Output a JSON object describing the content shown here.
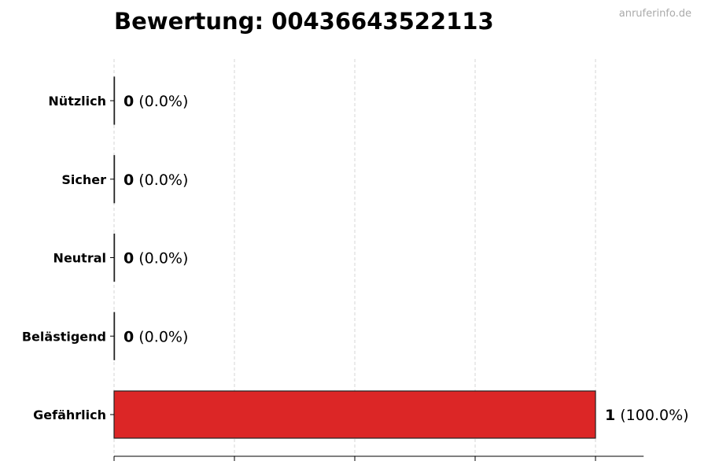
{
  "watermark": "anruferinfo.de",
  "chart_data": {
    "type": "bar",
    "orientation": "horizontal",
    "title": "Bewertung: 00436643522113",
    "categories": [
      "Nützlich",
      "Sicher",
      "Neutral",
      "Belästigend",
      "Gefährlich"
    ],
    "values": [
      0,
      0,
      0,
      0,
      1
    ],
    "value_labels": [
      "(0.0%)",
      "(0.0%)",
      "(0.0%)",
      "(0.0%)",
      "(100.0%)"
    ],
    "colors": [
      "#4caf50",
      "#2196f3",
      "#9e9e9e",
      "#ff9800",
      "#dc2626"
    ],
    "xlim": [
      0,
      1.1
    ],
    "xticks": [
      0,
      0.25,
      0.5,
      0.75,
      1.0
    ],
    "xtick_labels_shown": false,
    "grid": "x-dashed",
    "xlabel": "",
    "ylabel": ""
  }
}
